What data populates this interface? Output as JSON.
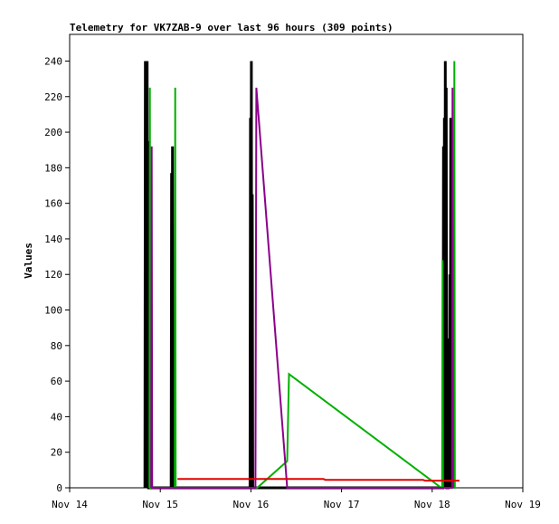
{
  "chart_data": {
    "type": "line",
    "title": "Telemetry for VK7ZAB-9 over last 96 hours (309 points)",
    "ylabel": "Values",
    "xlabel": "",
    "x_ticks": [
      "Nov 14",
      "Nov 15",
      "Nov 16",
      "Nov 17",
      "Nov 18",
      "Nov 19"
    ],
    "y_ticks": [
      0,
      20,
      40,
      60,
      80,
      100,
      120,
      140,
      160,
      180,
      200,
      220,
      240
    ],
    "xlim": [
      0,
      5
    ],
    "ylim": [
      0,
      255
    ],
    "grid": false,
    "series": [
      {
        "color": "#000000",
        "points": [
          [
            0.83,
            0
          ],
          [
            0.835,
            240
          ],
          [
            0.84,
            0
          ],
          [
            0.845,
            208
          ],
          [
            0.85,
            0
          ],
          [
            0.855,
            240
          ],
          [
            0.86,
            0
          ],
          [
            0.865,
            195
          ],
          [
            0.87,
            0
          ],
          [
            1.12,
            0
          ],
          [
            1.125,
            177
          ],
          [
            1.13,
            0
          ],
          [
            1.135,
            192
          ],
          [
            1.14,
            0
          ],
          [
            1.145,
            40
          ],
          [
            1.15,
            0
          ],
          [
            1.99,
            0
          ],
          [
            1.995,
            208
          ],
          [
            2.0,
            0
          ],
          [
            2.005,
            240
          ],
          [
            2.01,
            0
          ],
          [
            2.015,
            165
          ],
          [
            2.02,
            0
          ],
          [
            4.12,
            0
          ],
          [
            4.125,
            192
          ],
          [
            4.13,
            0
          ],
          [
            4.135,
            208
          ],
          [
            4.14,
            0
          ],
          [
            4.145,
            240
          ],
          [
            4.15,
            0
          ],
          [
            4.155,
            225
          ],
          [
            4.16,
            0
          ],
          [
            4.18,
            0
          ],
          [
            4.185,
            84
          ],
          [
            4.19,
            0
          ],
          [
            4.195,
            120
          ],
          [
            4.2,
            0
          ],
          [
            4.205,
            208
          ],
          [
            4.21,
            0
          ]
        ]
      },
      {
        "color": "#00b000",
        "points": [
          [
            0.88,
            0
          ],
          [
            0.885,
            225
          ],
          [
            0.89,
            0
          ],
          [
            1.16,
            0
          ],
          [
            1.165,
            225
          ],
          [
            1.17,
            0
          ],
          [
            2.07,
            0
          ],
          [
            2.4,
            15
          ],
          [
            2.42,
            64
          ],
          [
            4.1,
            0
          ],
          [
            4.11,
            0
          ],
          [
            4.115,
            128
          ],
          [
            4.12,
            0
          ],
          [
            4.24,
            0
          ],
          [
            4.245,
            240
          ],
          [
            4.25,
            0
          ]
        ]
      },
      {
        "color": "#8b008b",
        "points": [
          [
            0.9,
            0
          ],
          [
            0.905,
            192
          ],
          [
            0.91,
            0
          ],
          [
            2.05,
            0
          ],
          [
            2.06,
            225
          ],
          [
            2.4,
            0
          ],
          [
            4.22,
            0
          ],
          [
            4.225,
            225
          ],
          [
            4.23,
            0
          ]
        ]
      },
      {
        "color": "#e00000",
        "points": [
          [
            1.19,
            5
          ],
          [
            2.8,
            5
          ],
          [
            2.82,
            4.5
          ],
          [
            3.9,
            4.5
          ],
          [
            3.92,
            4
          ],
          [
            4.3,
            4
          ]
        ]
      }
    ]
  }
}
